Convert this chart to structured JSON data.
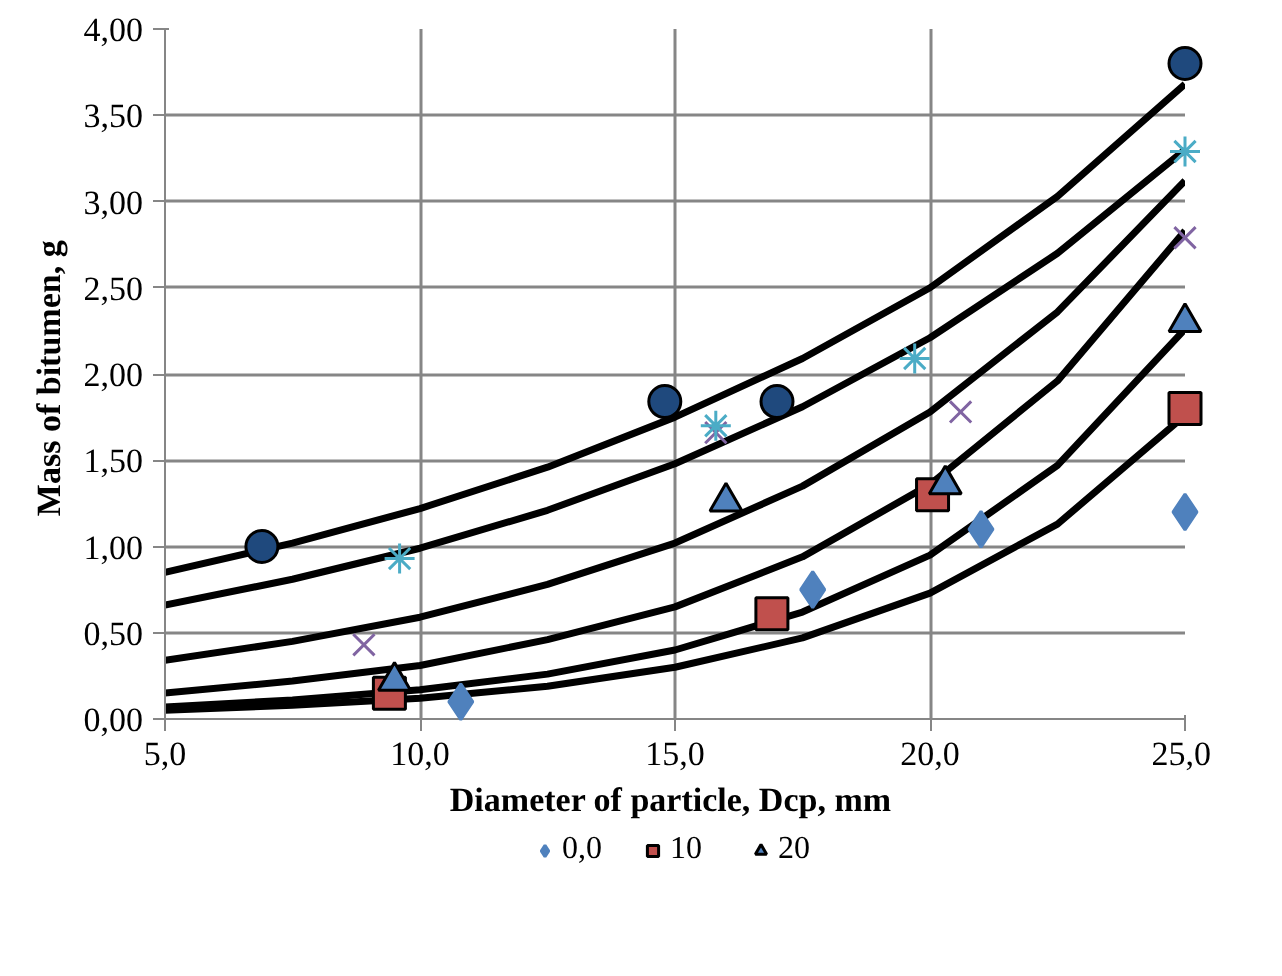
{
  "chart_data": {
    "type": "scatter",
    "xlabel": "Diameter of particle,  Dcp, mm",
    "ylabel": "Mass of  bitumen, g",
    "xlim": [
      5,
      25
    ],
    "ylim": [
      0,
      4
    ],
    "xticks": [
      {
        "value": 5,
        "label": "5,0"
      },
      {
        "value": 10,
        "label": "10,0"
      },
      {
        "value": 15,
        "label": "15,0"
      },
      {
        "value": 20,
        "label": "20,0"
      },
      {
        "value": 25,
        "label": "25,0"
      }
    ],
    "yticks": [
      {
        "value": 0,
        "label": "0,00"
      },
      {
        "value": 0.5,
        "label": "0,50"
      },
      {
        "value": 1,
        "label": "1,00"
      },
      {
        "value": 1.5,
        "label": "1,50"
      },
      {
        "value": 2,
        "label": "2,00"
      },
      {
        "value": 2.5,
        "label": "2,50"
      },
      {
        "value": 3,
        "label": "3,00"
      },
      {
        "value": 3.5,
        "label": "3,50"
      },
      {
        "value": 4,
        "label": "4,00"
      }
    ],
    "grid": true,
    "legend": "bottom",
    "series": [
      {
        "type": "line",
        "color": "#000000",
        "x": [
          5,
          7.5,
          10,
          12.5,
          15,
          17.5,
          20,
          22.5,
          25
        ],
        "values": [
          0.85,
          1.02,
          1.22,
          1.46,
          1.75,
          2.09,
          2.5,
          3.03,
          3.68
        ]
      },
      {
        "type": "line",
        "color": "#000000",
        "x": [
          5,
          7.5,
          10,
          12.5,
          15,
          17.5,
          20,
          22.5,
          25
        ],
        "values": [
          0.66,
          0.81,
          0.99,
          1.21,
          1.48,
          1.81,
          2.21,
          2.7,
          3.3
        ]
      },
      {
        "type": "line",
        "color": "#000000",
        "x": [
          5,
          7.5,
          10,
          12.5,
          15,
          17.5,
          20,
          22.5,
          25
        ],
        "values": [
          0.34,
          0.45,
          0.59,
          0.78,
          1.02,
          1.35,
          1.78,
          2.36,
          3.12
        ]
      },
      {
        "type": "line",
        "color": "#000000",
        "x": [
          5,
          7.5,
          10,
          12.5,
          15,
          17.5,
          20,
          22.5,
          25
        ],
        "values": [
          0.15,
          0.22,
          0.31,
          0.46,
          0.65,
          0.94,
          1.36,
          1.96,
          2.83
        ]
      },
      {
        "type": "line",
        "color": "#000000",
        "x": [
          5,
          7.5,
          10,
          12.5,
          15,
          17.5,
          20,
          22.5,
          25
        ],
        "values": [
          0.07,
          0.11,
          0.17,
          0.26,
          0.4,
          0.62,
          0.95,
          1.47,
          2.26
        ]
      },
      {
        "type": "line",
        "color": "#000000",
        "x": [
          5,
          7.5,
          10,
          12.5,
          15,
          17.5,
          20,
          22.5,
          25
        ],
        "values": [
          0.05,
          0.08,
          0.12,
          0.19,
          0.3,
          0.47,
          0.73,
          1.13,
          1.76
        ]
      },
      {
        "name": "0,0",
        "marker": "diamond",
        "color": "#4f81bd",
        "x": [
          10.8,
          17.7,
          21.0,
          25
        ],
        "values": [
          0.1,
          0.75,
          1.1,
          1.2
        ]
      },
      {
        "name": "10",
        "marker": "square",
        "color": "#c0504d",
        "x": [
          9.4,
          16.9,
          20.05,
          25
        ],
        "values": [
          0.15,
          0.61,
          1.3,
          1.8
        ]
      },
      {
        "name": "20",
        "marker": "triangle",
        "color": "#4f81bd",
        "x": [
          9.5,
          16.0,
          20.3,
          25
        ],
        "values": [
          0.22,
          1.26,
          1.36,
          2.3
        ]
      },
      {
        "marker": "x",
        "color": "#8064a2",
        "x": [
          8.9,
          15.8,
          20.6,
          25
        ],
        "values": [
          0.43,
          1.66,
          1.78,
          2.79
        ]
      },
      {
        "marker": "cross",
        "color": "#4bacc6",
        "x": [
          9.6,
          15.8,
          19.7,
          25
        ],
        "values": [
          0.93,
          1.7,
          2.09,
          3.29
        ]
      },
      {
        "marker": "circle",
        "color": "#1f497d",
        "x": [
          6.9,
          14.8,
          17.0,
          25
        ],
        "values": [
          1.0,
          1.84,
          1.84,
          3.8
        ]
      }
    ]
  }
}
